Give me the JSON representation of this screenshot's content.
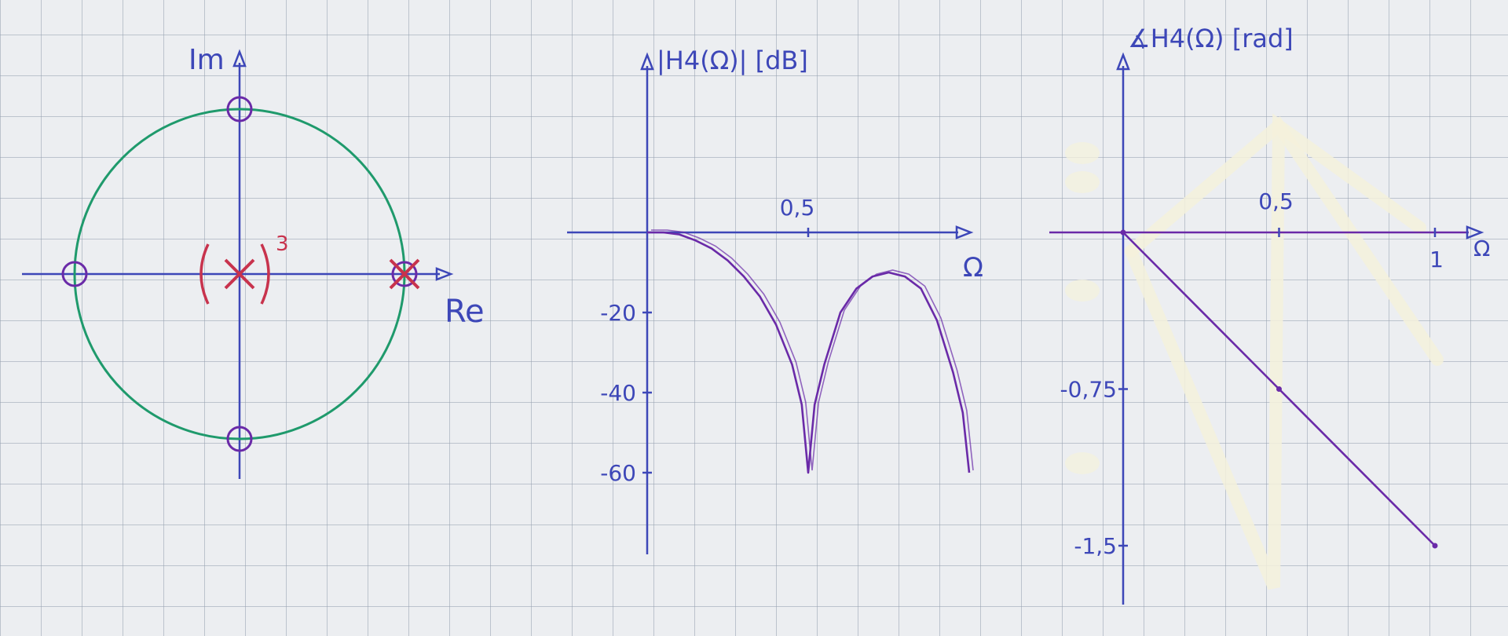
{
  "colors": {
    "ink_blue": "#3d47b8",
    "ink_purple": "#6a2aa8",
    "ink_red": "#c8334d",
    "ink_green": "#1f9a6c",
    "whiteout": "#f4f1dc"
  },
  "chart_data": [
    {
      "type": "scatter",
      "title": "",
      "xlabel": "Re",
      "ylabel": "Im",
      "unit_circle": true,
      "zeros": [
        [
          1,
          0
        ],
        [
          0,
          1
        ],
        [
          -1,
          0
        ],
        [
          0,
          -1
        ]
      ],
      "poles": [
        [
          0,
          0
        ],
        [
          1,
          0
        ]
      ],
      "pole_multiplicity_label": "3",
      "grid": true
    },
    {
      "type": "line",
      "title": "",
      "ylabel": "|H4(Ω)| [dB]",
      "xlabel": "Ω",
      "x_tick_labels": [
        "0,5"
      ],
      "y_tick_labels": [
        "-20",
        "-40",
        "-60"
      ],
      "xlim": [
        0,
        1
      ],
      "ylim": [
        -60,
        0
      ],
      "series": [
        {
          "x": [
            0,
            0.05,
            0.1,
            0.15,
            0.2,
            0.25,
            0.3,
            0.35,
            0.4,
            0.45,
            0.48,
            0.5,
            0.52,
            0.55,
            0.6,
            0.65,
            0.7,
            0.75,
            0.8,
            0.85,
            0.9,
            0.95,
            0.98,
            1.0
          ],
          "y": [
            0,
            0,
            -0.5,
            -2,
            -4,
            -7,
            -11,
            -16,
            -23,
            -33,
            -43,
            -60,
            -43,
            -33,
            -20,
            -14,
            -11,
            -10,
            -11,
            -14,
            -22,
            -35,
            -45,
            -60
          ]
        }
      ],
      "grid": true
    },
    {
      "type": "line",
      "title": "",
      "ylabel": "∡H4(Ω) [rad]",
      "xlabel": "Ω",
      "x_tick_labels": [
        "0,5",
        "1"
      ],
      "y_tick_labels": [
        "-0,75",
        "-1,5"
      ],
      "xlim": [
        0,
        1
      ],
      "ylim": [
        -1.5,
        0
      ],
      "series": [
        {
          "x": [
            0,
            0.5,
            1
          ],
          "y": [
            0,
            -0.75,
            -1.5
          ]
        }
      ],
      "grid": true
    }
  ]
}
